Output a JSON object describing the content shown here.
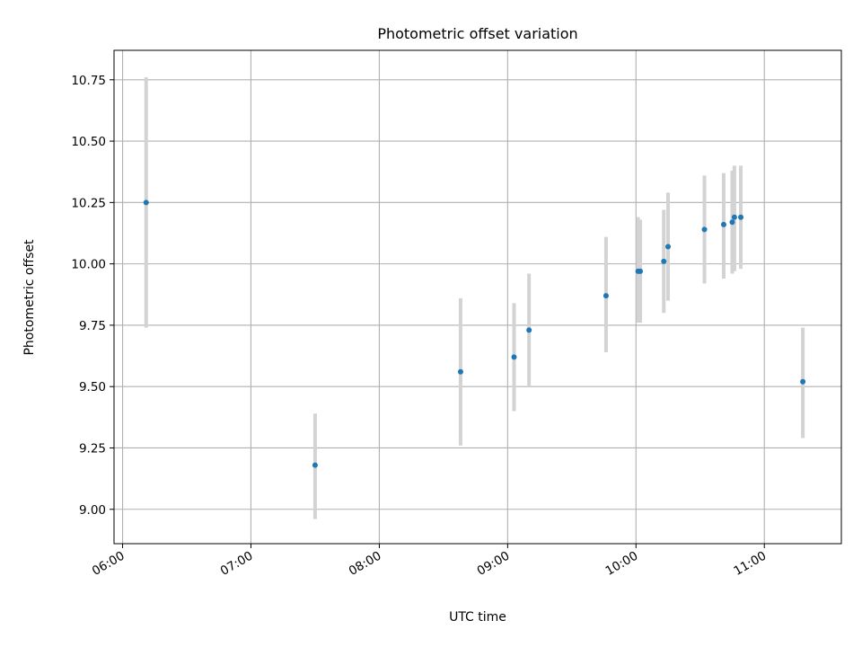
{
  "chart_data": {
    "type": "scatter",
    "title": "Photometric offset variation",
    "xlabel": "UTC time",
    "ylabel": "Photometric offset",
    "x_axis_type": "time",
    "xlim": [
      "05:56",
      "11:36"
    ],
    "ylim": [
      8.86,
      10.87
    ],
    "x_ticks": [
      "06:00",
      "07:00",
      "08:00",
      "09:00",
      "10:00",
      "11:00"
    ],
    "y_ticks": [
      9.0,
      9.25,
      9.5,
      9.75,
      10.0,
      10.25,
      10.5,
      10.75
    ],
    "y_tick_labels": [
      "9.00",
      "9.25",
      "9.50",
      "9.75",
      "10.00",
      "10.25",
      "10.50",
      "10.75"
    ],
    "grid": true,
    "legend": null,
    "colors": {
      "points": "#1f77b4",
      "error_bars": "#d3d3d3",
      "grid": "#b0b0b0"
    },
    "series": [
      {
        "error_bars": true,
        "points": [
          {
            "x": "06:11",
            "y": 10.25,
            "yerr_low": 9.74,
            "yerr_high": 10.76
          },
          {
            "x": "07:30",
            "y": 9.18,
            "yerr_low": 8.96,
            "yerr_high": 9.39
          },
          {
            "x": "08:38",
            "y": 9.56,
            "yerr_low": 9.26,
            "yerr_high": 9.86
          },
          {
            "x": "09:03",
            "y": 9.62,
            "yerr_low": 9.4,
            "yerr_high": 9.84
          },
          {
            "x": "09:10",
            "y": 9.73,
            "yerr_low": 9.5,
            "yerr_high": 9.96
          },
          {
            "x": "09:46",
            "y": 9.87,
            "yerr_low": 9.64,
            "yerr_high": 10.11
          },
          {
            "x": "10:01",
            "y": 9.97,
            "yerr_low": 9.76,
            "yerr_high": 10.19
          },
          {
            "x": "10:02",
            "y": 9.97,
            "yerr_low": 9.76,
            "yerr_high": 10.18
          },
          {
            "x": "10:13",
            "y": 10.01,
            "yerr_low": 9.8,
            "yerr_high": 10.22
          },
          {
            "x": "10:15",
            "y": 10.07,
            "yerr_low": 9.85,
            "yerr_high": 10.29
          },
          {
            "x": "10:32",
            "y": 10.14,
            "yerr_low": 9.92,
            "yerr_high": 10.36
          },
          {
            "x": "10:41",
            "y": 10.16,
            "yerr_low": 9.94,
            "yerr_high": 10.37
          },
          {
            "x": "10:45",
            "y": 10.17,
            "yerr_low": 9.96,
            "yerr_high": 10.38
          },
          {
            "x": "10:46",
            "y": 10.19,
            "yerr_low": 9.97,
            "yerr_high": 10.4
          },
          {
            "x": "10:49",
            "y": 10.19,
            "yerr_low": 9.98,
            "yerr_high": 10.4
          },
          {
            "x": "11:18",
            "y": 9.52,
            "yerr_low": 9.29,
            "yerr_high": 9.74
          }
        ]
      }
    ]
  }
}
